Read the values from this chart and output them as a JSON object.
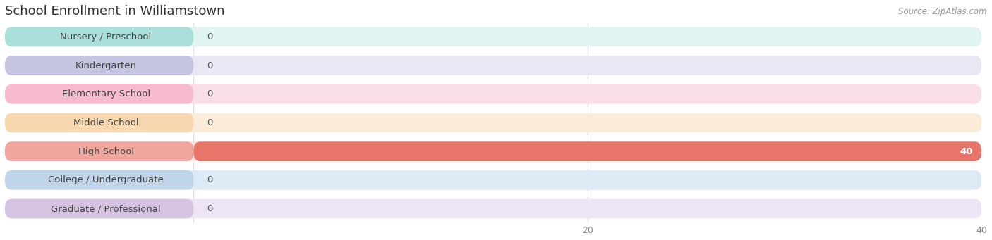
{
  "title": "School Enrollment in Williamstown",
  "source": "Source: ZipAtlas.com",
  "categories": [
    "Nursery / Preschool",
    "Kindergarten",
    "Elementary School",
    "Middle School",
    "High School",
    "College / Undergraduate",
    "Graduate / Professional"
  ],
  "values": [
    0,
    0,
    0,
    0,
    40,
    0,
    0
  ],
  "bar_colors": [
    "#7ececa",
    "#a9a9d4",
    "#f4a0b5",
    "#f5c990",
    "#e8756a",
    "#a9c4e0",
    "#c4a8d4"
  ],
  "bg_colors": [
    "#e0f4f4",
    "#e8e8f5",
    "#f9dde8",
    "#faecd8",
    "#fae0de",
    "#ddeaf5",
    "#ede5f5"
  ],
  "xlim_max": 44,
  "xticks": [
    0,
    20,
    40
  ],
  "title_fontsize": 13,
  "label_fontsize": 9.5,
  "source_fontsize": 8.5,
  "background_color": "#ffffff",
  "value_color_zero": "#555555",
  "value_color_filled": "#ffffff",
  "grid_color": "#dddddd",
  "text_color": "#444444"
}
